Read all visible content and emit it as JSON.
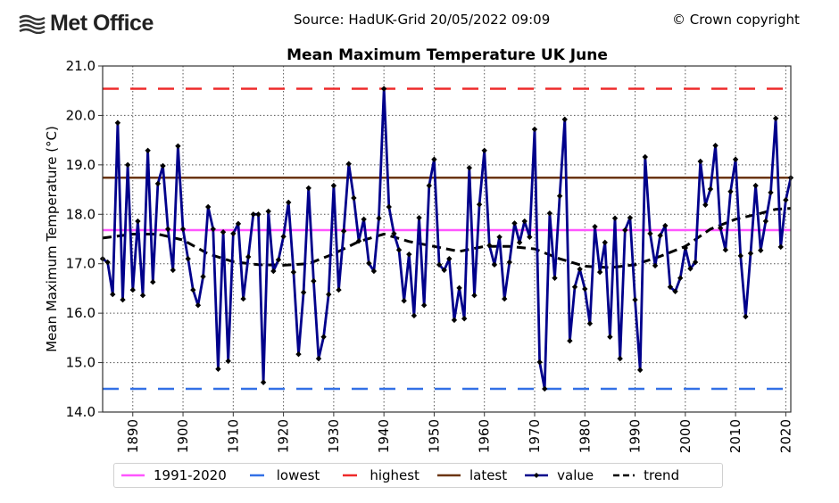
{
  "header": {
    "logo_text": "Met Office",
    "source": "Source: HadUK-Grid 20/05/2022 09:09",
    "copyright": "© Crown copyright"
  },
  "colors": {
    "value": "#00008b",
    "trend": "#000000",
    "average": "#ff55ff",
    "lowest": "#3370e6",
    "highest": "#ee2a2a",
    "latest": "#6b3510",
    "grid": "#555555"
  },
  "chart_data": {
    "type": "line",
    "title": "Mean Maximum Temperature UK June",
    "xlabel": "",
    "ylabel": "Mean Maximum Temperature (°C)",
    "xlim": [
      1884,
      2021
    ],
    "ylim": [
      14.0,
      21.0
    ],
    "yticks": [
      "14.0",
      "15.0",
      "16.0",
      "17.0",
      "18.0",
      "19.0",
      "20.0",
      "21.0"
    ],
    "ytick_values": [
      14,
      15,
      16,
      17,
      18,
      19,
      20,
      21
    ],
    "xticks": [
      "1890",
      "1900",
      "1910",
      "1920",
      "1930",
      "1940",
      "1950",
      "1960",
      "1970",
      "1980",
      "1990",
      "2000",
      "2010",
      "2020"
    ],
    "xtick_values": [
      1890,
      1900,
      1910,
      1920,
      1930,
      1940,
      1950,
      1960,
      1970,
      1980,
      1990,
      2000,
      2010,
      2020
    ],
    "grid": true,
    "reference_lines": {
      "average_1991_2020": 17.68,
      "lowest": 14.47,
      "highest": 20.54,
      "latest": 18.74
    },
    "x_start": 1884,
    "series": [
      {
        "name": "value",
        "values": [
          17.1,
          17.03,
          16.38,
          19.85,
          16.27,
          19.0,
          16.47,
          17.86,
          16.36,
          19.29,
          16.63,
          18.62,
          18.98,
          17.7,
          16.87,
          19.38,
          17.7,
          17.1,
          16.47,
          16.16,
          16.74,
          18.15,
          17.7,
          14.87,
          17.64,
          15.03,
          17.61,
          17.81,
          16.29,
          17.14,
          18.0,
          18.0,
          14.6,
          18.06,
          16.85,
          17.08,
          17.55,
          18.24,
          16.83,
          15.17,
          16.42,
          18.53,
          16.65,
          15.08,
          15.52,
          16.38,
          18.58,
          16.47,
          17.66,
          19.02,
          18.33,
          17.46,
          17.9,
          17.01,
          16.85,
          17.92,
          20.54,
          18.15,
          17.61,
          17.28,
          16.25,
          17.19,
          15.95,
          17.93,
          16.16,
          18.58,
          19.11,
          16.98,
          16.87,
          17.1,
          15.86,
          16.51,
          15.89,
          18.94,
          16.36,
          18.2,
          19.29,
          17.37,
          16.98,
          17.54,
          16.29,
          17.03,
          17.82,
          17.43,
          17.86,
          17.54,
          19.72,
          15.01,
          14.47,
          18.02,
          16.71,
          18.37,
          19.92,
          15.44,
          16.53,
          16.89,
          16.49,
          15.79,
          17.75,
          16.83,
          17.43,
          15.52,
          17.92,
          15.08,
          17.68,
          17.93,
          16.27,
          14.85,
          19.16,
          17.61,
          16.96,
          17.57,
          17.77,
          16.53,
          16.44,
          16.71,
          17.32,
          16.9,
          17.03,
          19.07,
          18.19,
          18.51,
          19.39,
          17.72,
          17.28,
          18.46,
          19.11,
          17.16,
          15.93,
          17.21,
          18.58,
          17.27,
          17.86,
          18.44,
          19.94,
          17.34,
          18.29,
          18.74
        ]
      },
      {
        "name": "trend",
        "x": [
          1884,
          1890,
          1895,
          1900,
          1905,
          1910,
          1915,
          1920,
          1925,
          1930,
          1935,
          1940,
          1945,
          1950,
          1955,
          1960,
          1965,
          1970,
          1975,
          1980,
          1985,
          1990,
          1995,
          2000,
          2005,
          2010,
          2015,
          2018,
          2021
        ],
        "values": [
          17.52,
          17.6,
          17.6,
          17.48,
          17.2,
          17.04,
          16.98,
          16.97,
          17.0,
          17.2,
          17.45,
          17.6,
          17.45,
          17.35,
          17.25,
          17.35,
          17.35,
          17.3,
          17.1,
          16.95,
          16.92,
          16.98,
          17.15,
          17.35,
          17.7,
          17.9,
          18.02,
          18.1,
          18.12
        ]
      }
    ],
    "legend": {
      "placement": "bottom",
      "entries": [
        "1991-2020",
        "lowest",
        "highest",
        "latest",
        "value",
        "trend"
      ]
    }
  }
}
